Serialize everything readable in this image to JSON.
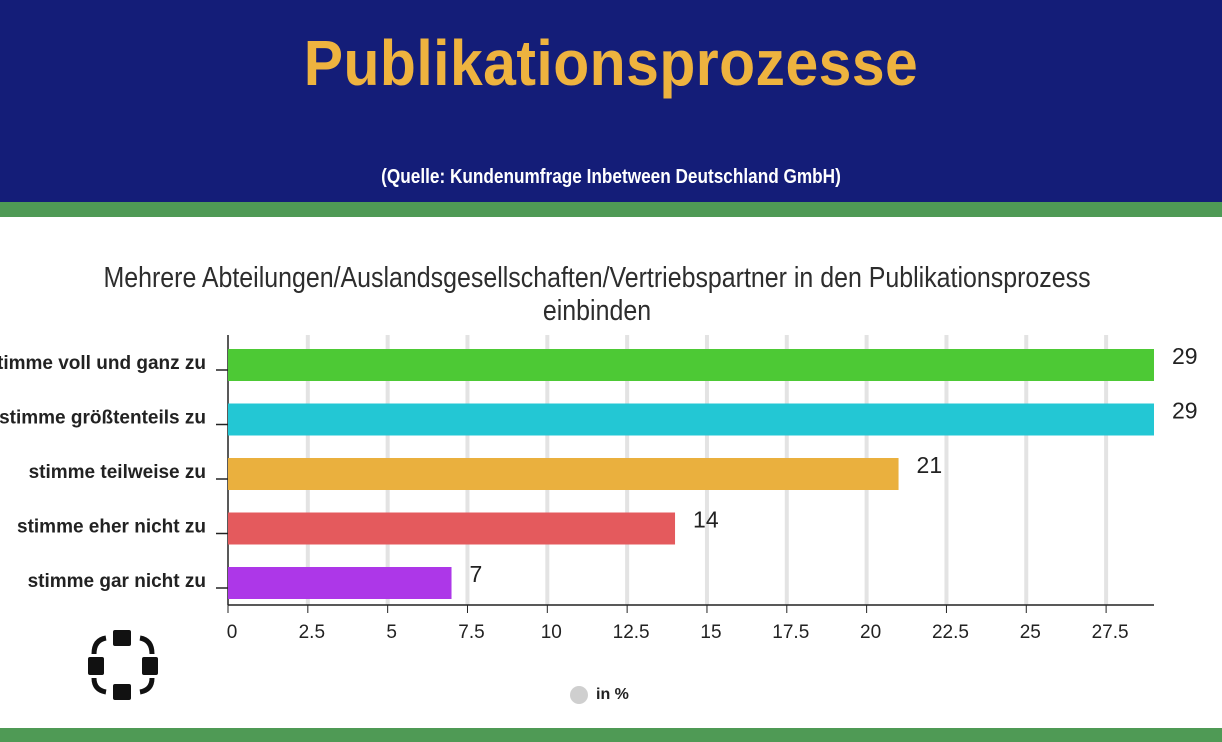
{
  "header": {
    "title": "Publikationsprozesse",
    "source": "(Quelle: Kundenumfrage Inbetween Deutschland GmbH)"
  },
  "colors": {
    "header_bg": "#141d78",
    "title": "#eeb33f",
    "accent_green": "#4f9a55"
  },
  "legend": {
    "label": "in %",
    "marker_color": "#cfcfcf"
  },
  "logo": {
    "icon": "network-nodes-icon"
  },
  "chart_data": {
    "type": "bar",
    "orientation": "horizontal",
    "title": "Mehrere Abteilungen/Auslandsgesellschaften/Vertriebspartner in den Publikationsprozess einbinden",
    "categories": [
      "stimme voll und ganz zu",
      "stimme größtenteils zu",
      "stimme teilweise zu",
      "stimme eher nicht zu",
      "stimme gar nicht zu"
    ],
    "values": [
      29,
      29,
      21,
      14,
      7
    ],
    "value_labels": [
      "29",
      "29",
      "21",
      "14",
      "7"
    ],
    "bar_colors": [
      "#4dc935",
      "#23c7d4",
      "#eab03e",
      "#e45a5d",
      "#ad37e8"
    ],
    "series": [
      {
        "name": "in %",
        "values": [
          29,
          29,
          21,
          14,
          7
        ]
      }
    ],
    "xticks": [
      "0",
      "2.5",
      "5",
      "7.5",
      "10",
      "12.5",
      "15",
      "17.5",
      "20",
      "22.5",
      "25",
      "27.5"
    ],
    "xlim": [
      0,
      29
    ],
    "grid": true,
    "legend_position": "bottom-center"
  }
}
